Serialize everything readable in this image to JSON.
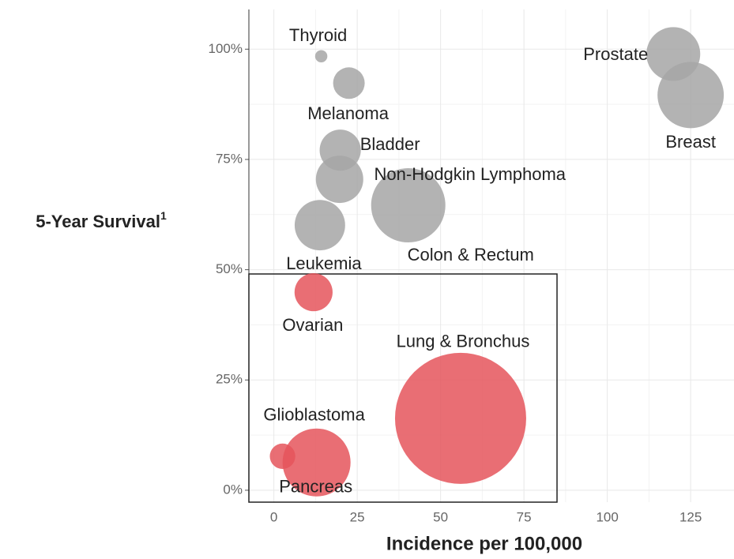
{
  "chart_data": {
    "type": "bubble",
    "x_label": "Incidence per 100,000",
    "y_label": "5-Year Survival",
    "y_label_sup": "1",
    "labels": [
      "Thyroid",
      "Melanoma",
      "Prostate",
      "Breast",
      "Bladder",
      "Non-Hodgkin Lymphoma",
      "Colon & Rectum",
      "Leukemia",
      "Ovarian",
      "Lung & Bronchus",
      "Glioblastoma",
      "Pancreas"
    ],
    "x": [
      14.2,
      22.5,
      119.8,
      125,
      19.9,
      19.7,
      40.3,
      13.8,
      11.9,
      56,
      2.6,
      12.8
    ],
    "values": [
      98.4,
      92.3,
      98.9,
      89.6,
      77.1,
      70.5,
      64.6,
      60.1,
      44.9,
      16.3,
      7.7,
      6.3
    ],
    "sizes": [
      6,
      40,
      116,
      176,
      68,
      90,
      221,
      102,
      58,
      689,
      26,
      185
    ],
    "colors": [
      "#a6a6a6",
      "#a6a6a6",
      "#a6a6a6",
      "#a6a6a6",
      "#a6a6a6",
      "#a6a6a6",
      "#a6a6a6",
      "#a6a6a6",
      "#e5555c",
      "#e5555c",
      "#e5555c",
      "#e5555c"
    ],
    "xlim": [
      -7.5,
      138
    ],
    "ylim": [
      -2.7,
      109
    ],
    "xticks": [
      0,
      25,
      50,
      75,
      100,
      125
    ],
    "yticks": [
      {
        "value": 0,
        "label": "0%"
      },
      {
        "value": 25,
        "label": "25%"
      },
      {
        "value": 50,
        "label": "50%"
      },
      {
        "value": 75,
        "label": "75%"
      },
      {
        "value": 100,
        "label": "100%"
      }
    ],
    "grid": true
  }
}
